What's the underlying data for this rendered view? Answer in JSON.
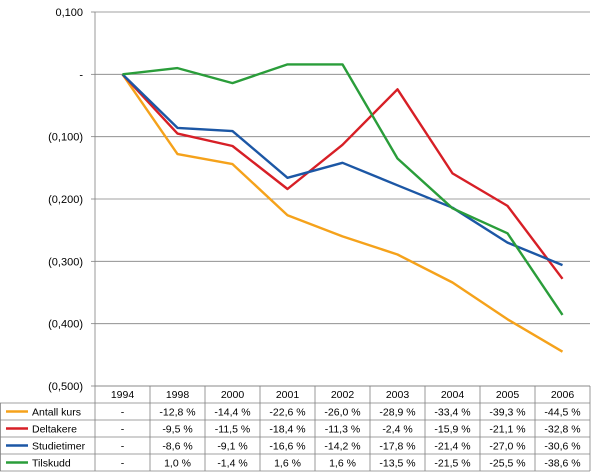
{
  "chart_data": {
    "type": "line",
    "title": "",
    "xlabel": "",
    "ylabel": "",
    "categories": [
      "1994",
      "1998",
      "2000",
      "2001",
      "2002",
      "2003",
      "2004",
      "2005",
      "2006"
    ],
    "y_ticks": [
      {
        "value": 0.1,
        "label": "0,100"
      },
      {
        "value": 0,
        "label": "-"
      },
      {
        "value": -0.1,
        "label": "(0,100)"
      },
      {
        "value": -0.2,
        "label": "(0,200)"
      },
      {
        "value": -0.3,
        "label": "(0,300)"
      },
      {
        "value": -0.4,
        "label": "(0,400)"
      },
      {
        "value": -0.5,
        "label": "(0,500)"
      }
    ],
    "ylim": [
      -0.5,
      0.1
    ],
    "grid": "horizontal",
    "legend": "table-below",
    "series": [
      {
        "name": "Antall kurs",
        "color": "#f5a21b",
        "values": [
          0,
          -0.128,
          -0.144,
          -0.226,
          -0.26,
          -0.289,
          -0.334,
          -0.393,
          -0.445
        ],
        "labels": [
          "-",
          "-12,8 %",
          "-14,4 %",
          "-22,6 %",
          "-26,0 %",
          "-28,9 %",
          "-33,4 %",
          "-39,3 %",
          "-44,5 %"
        ]
      },
      {
        "name": "Deltakere",
        "color": "#d71f26",
        "values": [
          0,
          -0.095,
          -0.115,
          -0.184,
          -0.113,
          -0.024,
          -0.159,
          -0.211,
          -0.328
        ],
        "labels": [
          "-",
          "-9,5 %",
          "-11,5 %",
          "-18,4 %",
          "-11,3 %",
          "-2,4 %",
          "-15,9 %",
          "-21,1 %",
          "-32,8 %"
        ]
      },
      {
        "name": "Studietimer",
        "color": "#1c57a5",
        "values": [
          0,
          -0.086,
          -0.091,
          -0.166,
          -0.142,
          -0.178,
          -0.214,
          -0.27,
          -0.306
        ],
        "labels": [
          "-",
          "-8,6 %",
          "-9,1 %",
          "-16,6 %",
          "-14,2 %",
          "-17,8 %",
          "-21,4 %",
          "-27,0 %",
          "-30,6 %"
        ]
      },
      {
        "name": "Tilskudd",
        "color": "#2a9d3a",
        "values": [
          0,
          0.01,
          -0.014,
          0.016,
          0.016,
          -0.135,
          -0.215,
          -0.255,
          -0.386
        ],
        "labels": [
          "-",
          "1,0 %",
          "-1,4 %",
          "1,6 %",
          "1,6 %",
          "-13,5 %",
          "-21,5 %",
          "-25,5 %",
          "-38,6 %"
        ]
      }
    ]
  }
}
